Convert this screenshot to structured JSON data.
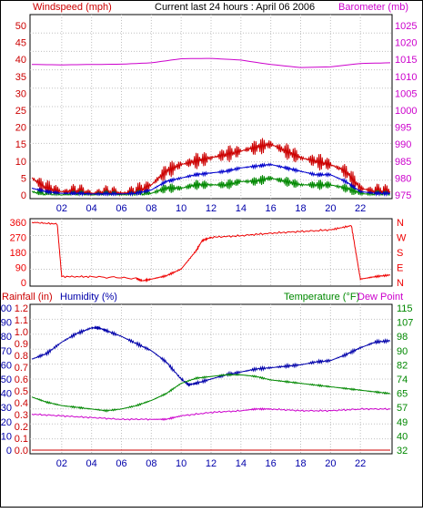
{
  "title": "Current last 24 hours : April 06 2006",
  "colors": {
    "wind": "#cc0000",
    "gust": "#cc0000",
    "wind_avg": "#0000cc",
    "wind_min": "#008800",
    "baro": "#cc00cc",
    "direction": "#ee0000",
    "rainfall": "#cc0000",
    "humidity": "#0000aa",
    "temperature": "#008800",
    "dewpoint": "#cc00cc",
    "grid": "#c0c0c0"
  },
  "chart_data": [
    {
      "type": "line",
      "panel": "wind-baro",
      "left_axis_label": "Windspeed (mph)",
      "right_axis_label": "Barometer (mb)",
      "left_ticks": [
        "0",
        "5",
        "10",
        "15",
        "20",
        "25",
        "30",
        "35",
        "40",
        "45",
        "50"
      ],
      "right_ticks": [
        "975",
        "980",
        "985",
        "990",
        "995",
        "1000",
        "1005",
        "1010",
        "1015",
        "1020",
        "1025"
      ],
      "ylim_left": [
        0,
        50
      ],
      "ylim_right": [
        975,
        1025
      ],
      "grid": true,
      "series": [
        {
          "key": "windspeed",
          "x": [
            0,
            1,
            2,
            3,
            4,
            5,
            6,
            7,
            8,
            9,
            10,
            11,
            12,
            13,
            14,
            15,
            16,
            17,
            18,
            19,
            20,
            21,
            22,
            23,
            24
          ],
          "values": [
            5,
            2,
            1,
            1,
            0.5,
            0.5,
            0.5,
            1,
            3,
            7,
            9,
            10,
            11,
            12,
            13,
            14,
            15,
            13,
            11,
            10,
            9,
            7,
            2,
            1,
            1
          ]
        },
        {
          "key": "wind_avg",
          "x": [
            0,
            1,
            2,
            3,
            4,
            5,
            6,
            7,
            8,
            9,
            10,
            11,
            12,
            13,
            14,
            15,
            16,
            17,
            18,
            19,
            20,
            21,
            22,
            23,
            24
          ],
          "values": [
            2,
            1,
            0.5,
            0.5,
            0.3,
            0.3,
            0.3,
            0.5,
            1.5,
            4,
            5,
            6,
            6.5,
            7,
            8,
            8.5,
            9,
            8,
            7,
            6,
            6,
            4,
            1,
            0.5,
            0.5
          ]
        },
        {
          "key": "wind_min",
          "x": [
            0,
            1,
            2,
            3,
            4,
            5,
            6,
            7,
            8,
            9,
            10,
            11,
            12,
            13,
            14,
            15,
            16,
            17,
            18,
            19,
            20,
            21,
            22,
            23,
            24
          ],
          "values": [
            1,
            0,
            0,
            0,
            0,
            0,
            0,
            0,
            0.5,
            2,
            2,
            3,
            3,
            3,
            4,
            4,
            5,
            4,
            3,
            3,
            3,
            2,
            0.5,
            0,
            0
          ]
        },
        {
          "key": "barometer",
          "x": [
            0,
            2,
            4,
            6,
            8,
            10,
            12,
            14,
            16,
            18,
            20,
            22,
            24
          ],
          "values": [
            1013.5,
            1013.4,
            1013.5,
            1013.6,
            1014.0,
            1015.2,
            1015.3,
            1014.8,
            1013.5,
            1012.6,
            1012.8,
            1013.8,
            1014.0
          ]
        }
      ]
    },
    {
      "type": "line",
      "panel": "direction",
      "left_ticks": [
        "0",
        "90",
        "180",
        "270",
        "360"
      ],
      "right_ticks": [
        "N",
        "E",
        "S",
        "W",
        "N"
      ],
      "ylim": [
        0,
        360
      ],
      "grid": true,
      "series": [
        {
          "key": "wind_direction",
          "x": [
            0,
            1.7,
            2.0,
            4.0,
            7.0,
            7.4,
            8.0,
            9.0,
            10.0,
            11.0,
            11.4,
            12.0,
            14.0,
            16.0,
            18.0,
            20.0,
            21.4,
            22.0,
            23.0,
            24.0
          ],
          "values": [
            360,
            350,
            35,
            35,
            25,
            10,
            20,
            40,
            80,
            190,
            250,
            270,
            280,
            295,
            305,
            315,
            340,
            20,
            35,
            45
          ]
        }
      ]
    },
    {
      "type": "line",
      "panel": "rain-humidity-temp",
      "labels": {
        "rainfall": "Rainfall (in)",
        "humidity": "Humidity (%)",
        "temperature": "Temperature (°F)",
        "dewpoint": "Dew Point"
      },
      "rain_ticks": [
        "0.0",
        "0.1",
        "0.2",
        "0.3",
        "0.4",
        "0.5",
        "0.6",
        "0.7",
        "0.8",
        "0.9",
        "1.0",
        "1.1",
        "1.2"
      ],
      "humidity_ticks": [
        "0",
        "10",
        "20",
        "30",
        "40",
        "50",
        "60",
        "70",
        "80",
        "90",
        "100"
      ],
      "temp_ticks": [
        "32",
        "40",
        "49",
        "57",
        "65",
        "74",
        "82",
        "90",
        "98",
        "107",
        "115"
      ],
      "x_ticks": [
        "02",
        "04",
        "06",
        "08",
        "10",
        "12",
        "14",
        "16",
        "18",
        "20",
        "22"
      ],
      "ylim_rain": [
        0,
        1.2
      ],
      "ylim_humidity": [
        0,
        100
      ],
      "ylim_temp": [
        32,
        115
      ],
      "grid": true,
      "series": [
        {
          "key": "rainfall",
          "x": [
            0,
            24
          ],
          "values": [
            0.0,
            0.0
          ]
        },
        {
          "key": "humidity",
          "x": [
            0,
            1,
            2,
            3,
            4,
            4.5,
            5,
            6,
            7,
            8,
            9,
            10,
            10.5,
            11,
            12,
            13,
            14,
            15,
            16,
            17,
            18,
            19,
            20,
            21,
            22,
            23,
            24
          ],
          "values": [
            64,
            68,
            76,
            82,
            86,
            86,
            84,
            80,
            75,
            70,
            62,
            50,
            46,
            47,
            50,
            53,
            55,
            57,
            58,
            59,
            60,
            62,
            63,
            67,
            72,
            76,
            77
          ]
        },
        {
          "key": "temperature",
          "x": [
            0,
            1,
            2,
            3,
            4,
            5,
            6,
            7,
            8,
            9,
            10,
            11,
            12,
            13,
            14,
            15,
            16,
            17,
            18,
            19,
            20,
            21,
            22,
            23,
            24
          ],
          "values": [
            63,
            60,
            58,
            57,
            56,
            55,
            56,
            58,
            61,
            65,
            71,
            74,
            75,
            76,
            76,
            75,
            73,
            72,
            71,
            70,
            69,
            68,
            67,
            66,
            65
          ]
        },
        {
          "key": "dewpoint",
          "x": [
            0,
            2,
            4,
            6,
            8,
            9,
            10,
            12,
            14,
            15,
            16,
            18,
            20,
            22,
            24
          ],
          "values": [
            53,
            52,
            51,
            50,
            50,
            50,
            52,
            54,
            55,
            56,
            56,
            55,
            55,
            56,
            56
          ]
        }
      ]
    }
  ]
}
